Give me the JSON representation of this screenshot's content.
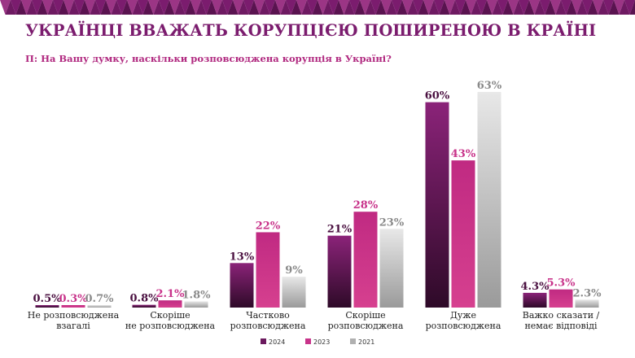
{
  "title": "УКРАЇНЦІ ВВАЖАТЬ КОРУПЦІЄЮ ПОШИРЕНОЮ В КРАЇНІ",
  "subtitle": "П: На Вашу думку, наскільки розповсюджена корупція в Україні?",
  "colors": {
    "accent": "#7b1c6e",
    "series_2024": "#6b1a5e",
    "series_2023": "#c8338a",
    "series_2021": "#cfcfcf",
    "label_2024": "#4a1040",
    "label_2023": "#c8338a",
    "label_2021": "#8a8a8a"
  },
  "chart_data": {
    "type": "bar",
    "title": "УКРАЇНЦІ ВВАЖАТЬ КОРУПЦІЄЮ ПОШИРЕНОЮ В КРАЇНІ",
    "subtitle": "П: На Вашу думку, наскільки розповсюджена корупція в Україні?",
    "categories": [
      [
        "Не розповсюджена",
        "взагалі"
      ],
      [
        "Скоріше",
        "не розповсюджена"
      ],
      [
        "Частково",
        "розповсюджена"
      ],
      [
        "Скоріше",
        "розповсюджена"
      ],
      [
        "Дуже",
        "розповсюджена"
      ],
      [
        "Важко сказати /",
        "немає відповіді"
      ]
    ],
    "series": [
      {
        "name": "2024",
        "values": [
          0.5,
          0.8,
          13,
          21,
          60,
          4.3
        ],
        "labels": [
          "0.5%",
          "0.8%",
          "13%",
          "21%",
          "60%",
          "4.3%"
        ]
      },
      {
        "name": "2023",
        "values": [
          0.3,
          2.1,
          22,
          28,
          43,
          5.3
        ],
        "labels": [
          "0.3%",
          "2.1%",
          "22%",
          "28%",
          "43%",
          "5.3%"
        ]
      },
      {
        "name": "2021",
        "values": [
          0.7,
          1.8,
          9,
          23,
          63,
          2.3
        ],
        "labels": [
          "0.7%",
          "1.8%",
          "9%",
          "23%",
          "63%",
          "2.3%"
        ]
      }
    ],
    "ylim": [
      0,
      63
    ],
    "legend_position": "bottom-center",
    "grid": false
  }
}
